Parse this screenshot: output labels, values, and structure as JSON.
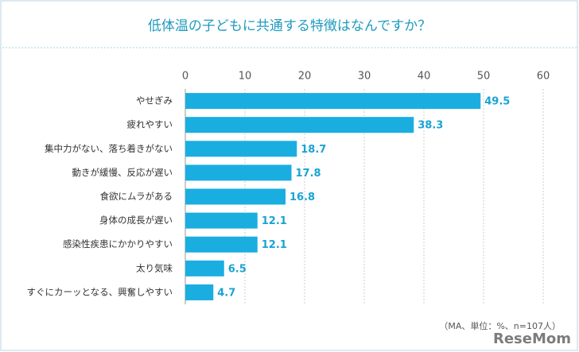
{
  "chart_data": {
    "type": "barh",
    "title": "低体温の子どもに共通する特徴はなんですか？",
    "categories": [
      "やせぎみ",
      "疲れやすい",
      "集中力がない、落ち着きがない",
      "動きが緩慢、反応が遅い",
      "食欲にムラがある",
      "身体の成長が遅い",
      "感染性疾患にかかりやすい",
      "太り気味",
      "すぐにカーッとなる、興奮しやすい"
    ],
    "values": [
      49.5,
      38.3,
      18.7,
      17.8,
      16.8,
      12.1,
      12.1,
      6.5,
      4.7
    ],
    "color": "#1aaee0",
    "xlim": [
      0,
      60
    ],
    "xticks": [
      0,
      10,
      20,
      30,
      40,
      50,
      60
    ],
    "grid": true,
    "note": "（MA、単位：%、n=107人）",
    "watermark": "ReseMom"
  }
}
